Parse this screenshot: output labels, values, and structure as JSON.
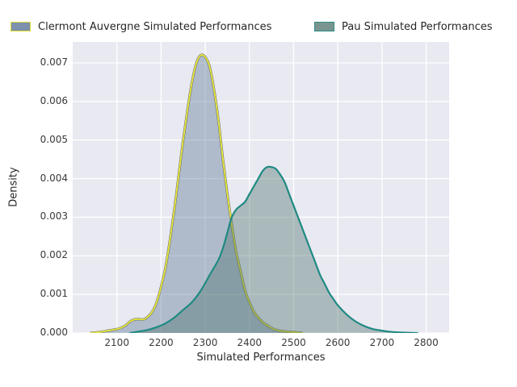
{
  "legend": {
    "items": [
      {
        "label": "Clermont Auvergne Simulated Performances",
        "swatch_fill": "#7d90ae",
        "swatch_border": "#e0db33"
      },
      {
        "label": "Pau Simulated Performances",
        "swatch_fill": "#7a948f",
        "swatch_border": "#2e8b85"
      }
    ]
  },
  "axes": {
    "xlabel": "Simulated Performances",
    "ylabel": "Density"
  },
  "style": {
    "plot_background": "#e9e9f2",
    "gridline_color": "#ffffff",
    "text_color": "#3a3a3a"
  },
  "chart_data": {
    "type": "area",
    "subtype": "kde-density",
    "title": "",
    "xlabel": "Simulated Performances",
    "ylabel": "Density",
    "xlim": [
      2000,
      2852
    ],
    "ylim": [
      0,
      0.007543
    ],
    "x_ticks": [
      2100,
      2200,
      2300,
      2400,
      2500,
      2600,
      2700,
      2800
    ],
    "y_ticks": [
      0.0,
      0.001,
      0.002,
      0.003,
      0.004,
      0.005,
      0.006,
      0.007
    ],
    "grid": true,
    "legend_position": "top",
    "series": [
      {
        "name": "Clermont Auvergne Simulated Performances",
        "line_color": "#e8e33b",
        "edge_color": "#54667c",
        "fill_color": "#587692",
        "fill_alpha": 0.4,
        "line_width": 2,
        "peak": [
          2290,
          0.0072
        ],
        "points": [
          [
            2040,
            0
          ],
          [
            2060,
            2e-05
          ],
          [
            2080,
            6e-05
          ],
          [
            2100,
            0.0001
          ],
          [
            2110,
            0.00014
          ],
          [
            2120,
            0.0002
          ],
          [
            2130,
            0.0003
          ],
          [
            2140,
            0.00035
          ],
          [
            2150,
            0.00036
          ],
          [
            2160,
            0.00035
          ],
          [
            2170,
            0.00042
          ],
          [
            2180,
            0.00055
          ],
          [
            2190,
            0.0008
          ],
          [
            2200,
            0.0012
          ],
          [
            2210,
            0.0017
          ],
          [
            2220,
            0.0024
          ],
          [
            2230,
            0.0032
          ],
          [
            2240,
            0.0041
          ],
          [
            2250,
            0.005
          ],
          [
            2260,
            0.0058
          ],
          [
            2270,
            0.0065
          ],
          [
            2280,
            0.007
          ],
          [
            2290,
            0.0072
          ],
          [
            2300,
            0.00715
          ],
          [
            2310,
            0.0069
          ],
          [
            2320,
            0.0063
          ],
          [
            2330,
            0.0055
          ],
          [
            2340,
            0.0045
          ],
          [
            2350,
            0.0036
          ],
          [
            2360,
            0.0028
          ],
          [
            2370,
            0.0021
          ],
          [
            2380,
            0.0016
          ],
          [
            2390,
            0.0011
          ],
          [
            2400,
            0.0008
          ],
          [
            2410,
            0.00055
          ],
          [
            2420,
            0.0004
          ],
          [
            2430,
            0.00028
          ],
          [
            2440,
            0.0002
          ],
          [
            2450,
            0.00013
          ],
          [
            2460,
            8e-05
          ],
          [
            2480,
            4e-05
          ],
          [
            2500,
            2e-05
          ],
          [
            2520,
            0
          ]
        ]
      },
      {
        "name": "Pau Simulated Performances",
        "line_color": "#1f8a82",
        "edge_color": null,
        "fill_color": "#4a706c",
        "fill_alpha": 0.4,
        "line_width": 2.2,
        "peak": [
          2445,
          0.0043
        ],
        "points": [
          [
            2130,
            0
          ],
          [
            2150,
            4e-05
          ],
          [
            2170,
            8e-05
          ],
          [
            2190,
            0.00015
          ],
          [
            2210,
            0.00025
          ],
          [
            2230,
            0.0004
          ],
          [
            2250,
            0.0006
          ],
          [
            2270,
            0.0008
          ],
          [
            2290,
            0.0011
          ],
          [
            2310,
            0.0015
          ],
          [
            2330,
            0.0019
          ],
          [
            2340,
            0.0022
          ],
          [
            2350,
            0.0026
          ],
          [
            2360,
            0.003
          ],
          [
            2370,
            0.0032
          ],
          [
            2380,
            0.0033
          ],
          [
            2390,
            0.0034
          ],
          [
            2400,
            0.0036
          ],
          [
            2410,
            0.0038
          ],
          [
            2420,
            0.004
          ],
          [
            2430,
            0.0042
          ],
          [
            2440,
            0.0043
          ],
          [
            2450,
            0.0043
          ],
          [
            2460,
            0.00425
          ],
          [
            2470,
            0.0041
          ],
          [
            2480,
            0.0039
          ],
          [
            2490,
            0.0036
          ],
          [
            2500,
            0.0033
          ],
          [
            2510,
            0.003
          ],
          [
            2520,
            0.0027
          ],
          [
            2530,
            0.0024
          ],
          [
            2540,
            0.0021
          ],
          [
            2550,
            0.0018
          ],
          [
            2560,
            0.0015
          ],
          [
            2570,
            0.00128
          ],
          [
            2580,
            0.00105
          ],
          [
            2590,
            0.00088
          ],
          [
            2600,
            0.00072
          ],
          [
            2620,
            0.00048
          ],
          [
            2640,
            0.0003
          ],
          [
            2660,
            0.00018
          ],
          [
            2680,
            0.0001
          ],
          [
            2700,
            6e-05
          ],
          [
            2720,
            3e-05
          ],
          [
            2750,
            1e-05
          ],
          [
            2780,
            0
          ]
        ]
      }
    ]
  }
}
